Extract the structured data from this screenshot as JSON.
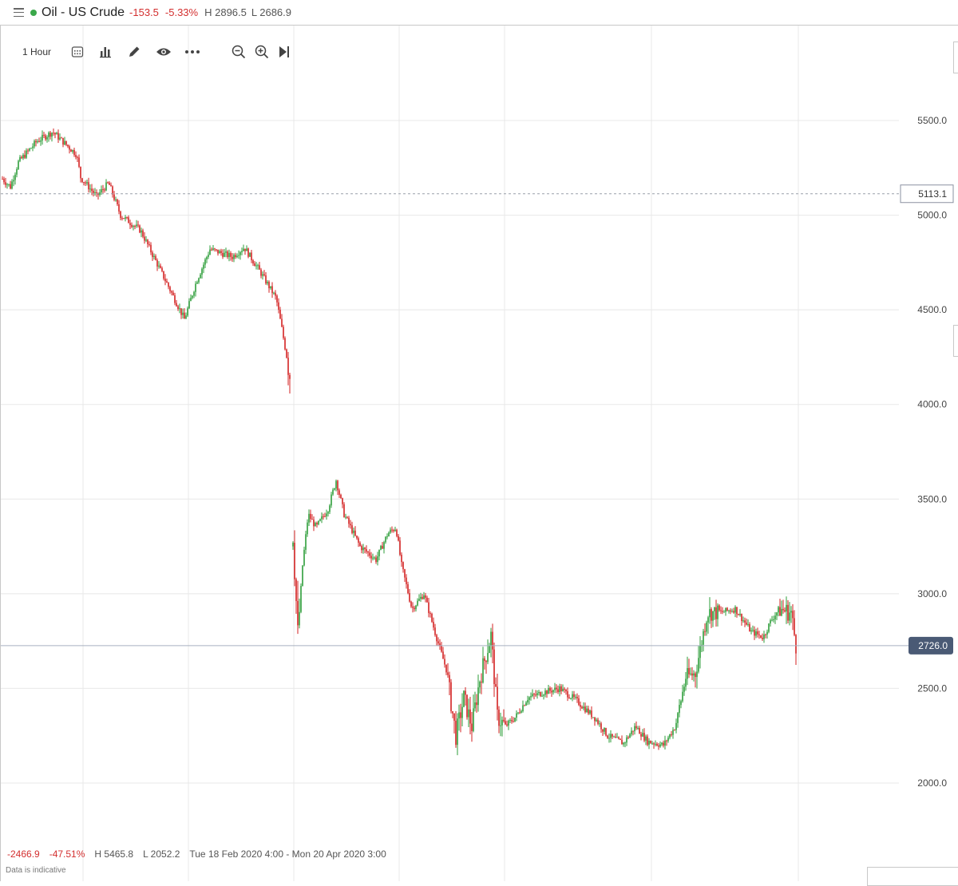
{
  "header": {
    "instrument": "Oil - US Crude",
    "change": "-153.5",
    "change_pct": "-5.33%",
    "high": "H 2896.5",
    "low": "L 2686.9",
    "status_color": "#3aa84a"
  },
  "toolbar": {
    "interval": "1 Hour",
    "icons": [
      "calendar-grid-icon",
      "bar-chart-icon",
      "pencil-icon",
      "eye-icon",
      "more-icon",
      "zoom-out-icon",
      "zoom-in-icon",
      "play-to-end-icon"
    ]
  },
  "footer": {
    "change": "-2466.9",
    "change_pct": "-47.51%",
    "high": "H 5465.8",
    "low": "L 2052.2",
    "range": "Tue 18 Feb 2020 4:00 - Mon 20 Apr 2020 3:00",
    "disclaimer": "Data is indicative"
  },
  "colors": {
    "up": "#2e9e3a",
    "down": "#d32222",
    "grid": "#e8e8e8",
    "price_tag": "#4a5a75"
  },
  "chart_data": {
    "type": "candlestick",
    "ylim": [
      1600,
      5950
    ],
    "y_ticks": [
      "5500.0",
      "5000.0",
      "4500.0",
      "4000.0",
      "3500.0",
      "3000.0",
      "2500.0",
      "2000.0"
    ],
    "reference_line": {
      "value": 5113.1,
      "label": "5113.1"
    },
    "last_price": {
      "value": 2726.0,
      "label": "2726.0"
    },
    "path": [
      [
        0,
        5200
      ],
      [
        12,
        5150
      ],
      [
        22,
        5280
      ],
      [
        45,
        5390
      ],
      [
        65,
        5440
      ],
      [
        80,
        5380
      ],
      [
        95,
        5320
      ],
      [
        100,
        5200
      ],
      [
        120,
        5100
      ],
      [
        135,
        5170
      ],
      [
        150,
        5000
      ],
      [
        175,
        4920
      ],
      [
        195,
        4750
      ],
      [
        215,
        4580
      ],
      [
        230,
        4450
      ],
      [
        245,
        4650
      ],
      [
        262,
        4820
      ],
      [
        290,
        4780
      ],
      [
        305,
        4830
      ],
      [
        325,
        4700
      ],
      [
        345,
        4560
      ],
      [
        352,
        4400
      ],
      [
        362,
        4160
      ],
      [
        366,
        3320
      ],
      [
        372,
        2780
      ],
      [
        378,
        3150
      ],
      [
        385,
        3420
      ],
      [
        395,
        3350
      ],
      [
        410,
        3450
      ],
      [
        420,
        3600
      ],
      [
        430,
        3420
      ],
      [
        450,
        3250
      ],
      [
        470,
        3180
      ],
      [
        485,
        3320
      ],
      [
        495,
        3350
      ],
      [
        502,
        3150
      ],
      [
        515,
        2920
      ],
      [
        530,
        3000
      ],
      [
        545,
        2780
      ],
      [
        558,
        2600
      ],
      [
        570,
        2250
      ],
      [
        580,
        2450
      ],
      [
        590,
        2300
      ],
      [
        600,
        2550
      ],
      [
        614,
        2780
      ],
      [
        622,
        2350
      ],
      [
        632,
        2300
      ],
      [
        645,
        2350
      ],
      [
        660,
        2450
      ],
      [
        680,
        2480
      ],
      [
        700,
        2500
      ],
      [
        720,
        2440
      ],
      [
        745,
        2340
      ],
      [
        760,
        2250
      ],
      [
        780,
        2210
      ],
      [
        795,
        2300
      ],
      [
        810,
        2220
      ],
      [
        830,
        2200
      ],
      [
        845,
        2300
      ],
      [
        858,
        2560
      ],
      [
        870,
        2580
      ],
      [
        885,
        2900
      ],
      [
        900,
        2900
      ],
      [
        920,
        2920
      ],
      [
        940,
        2800
      ],
      [
        955,
        2770
      ],
      [
        965,
        2860
      ],
      [
        975,
        2920
      ],
      [
        990,
        2900
      ],
      [
        996,
        2726
      ]
    ],
    "volatility_windows": [
      {
        "from": 360,
        "to": 375,
        "amp": 140
      },
      {
        "from": 560,
        "to": 630,
        "amp": 95
      },
      {
        "from": 850,
        "to": 900,
        "amp": 80
      },
      {
        "from": 975,
        "to": 996,
        "amp": 90
      }
    ]
  }
}
